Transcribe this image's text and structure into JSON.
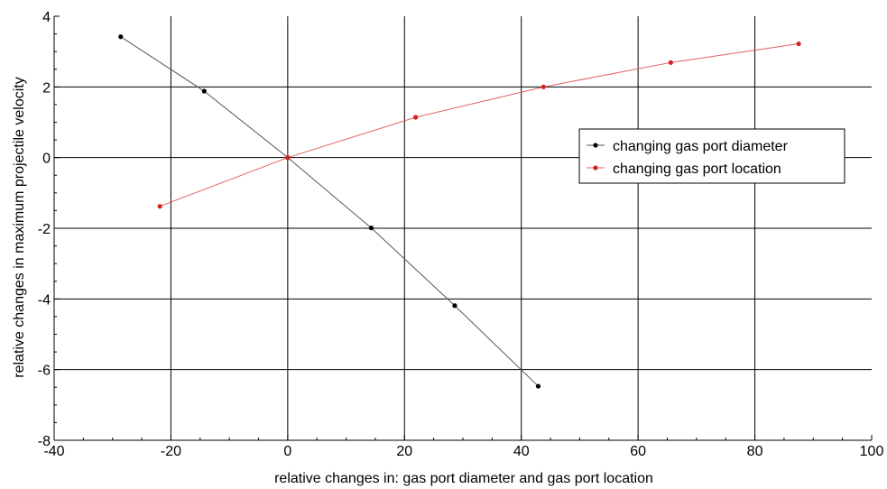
{
  "chart_data": {
    "type": "line",
    "xlabel": "relative changes in: gas port diameter and gas port location",
    "ylabel": "relative changes in maximum projectile velocity",
    "xlim": [
      -40,
      100
    ],
    "ylim": [
      -8,
      4
    ],
    "xticks": [
      -40,
      -20,
      0,
      20,
      40,
      60,
      80,
      100
    ],
    "yticks": [
      -8,
      -6,
      -4,
      -2,
      0,
      2,
      4
    ],
    "grid": true,
    "legend_position": "right",
    "series": [
      {
        "name": "changing gas port diameter",
        "color": "#000000",
        "line_color": "#555555",
        "x": [
          -28.6,
          -14.3,
          0,
          14.3,
          28.6,
          42.9
        ],
        "y": [
          3.42,
          1.88,
          0,
          -1.99,
          -4.19,
          -6.47
        ]
      },
      {
        "name": "changing gas port location",
        "color": "#d42020",
        "line_color": "#e06060",
        "x": [
          -21.9,
          0,
          21.9,
          43.8,
          65.6,
          87.5
        ],
        "y": [
          -1.38,
          0,
          1.14,
          2.0,
          2.69,
          3.22
        ]
      }
    ]
  }
}
